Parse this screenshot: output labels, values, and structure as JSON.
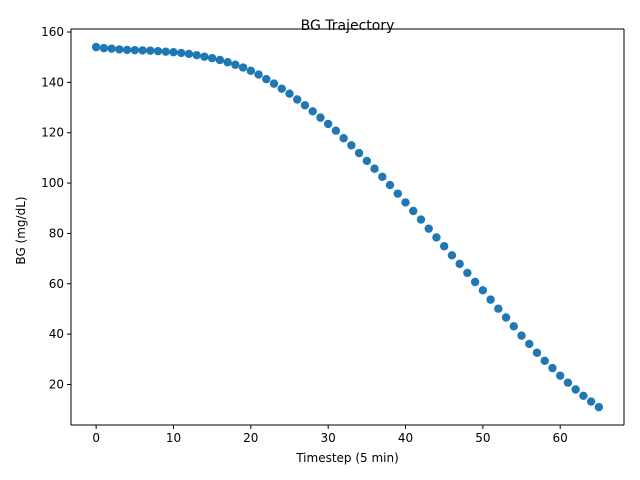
{
  "chart_data": {
    "type": "scatter",
    "title": "BG Trajectory",
    "xlabel": "Timestep (5 min)",
    "ylabel": "BG (mg/dL)",
    "xlim": [
      -3.25,
      68.25
    ],
    "ylim": [
      3.9,
      161.2
    ],
    "xticks": [
      0,
      10,
      20,
      30,
      40,
      50,
      60
    ],
    "yticks": [
      20,
      40,
      60,
      80,
      100,
      120,
      140,
      160
    ],
    "grid": false,
    "legend": "none",
    "marker_color": "#1f77b4",
    "series": [
      {
        "x": [
          0,
          1,
          2,
          3,
          4,
          5,
          6,
          7,
          8,
          9,
          10,
          11,
          12,
          13,
          14,
          15,
          16,
          17,
          18,
          19,
          20,
          21,
          22,
          23,
          24,
          25,
          26,
          27,
          28,
          29,
          30,
          31,
          32,
          33,
          34,
          35,
          36,
          37,
          38,
          39,
          40,
          41,
          42,
          43,
          44,
          45,
          46,
          47,
          48,
          49,
          50,
          51,
          52,
          53,
          54,
          55,
          56,
          57,
          58,
          59,
          60,
          61,
          62,
          63,
          64,
          65
        ],
        "y": [
          154.0,
          153.6,
          153.4,
          153.1,
          152.9,
          152.8,
          152.7,
          152.6,
          152.4,
          152.2,
          152.0,
          151.7,
          151.3,
          150.8,
          150.2,
          149.6,
          148.9,
          148.0,
          147.0,
          145.9,
          144.6,
          143.1,
          141.3,
          139.5,
          137.5,
          135.5,
          133.2,
          130.9,
          128.5,
          126.0,
          123.5,
          120.8,
          117.8,
          115.0,
          111.9,
          108.8,
          105.7,
          102.5,
          99.2,
          95.8,
          92.3,
          88.9,
          85.5,
          81.9,
          78.4,
          74.9,
          71.3,
          67.9,
          64.3,
          60.7,
          57.4,
          53.7,
          50.1,
          46.6,
          43.1,
          39.4,
          36.1,
          32.6,
          29.4,
          26.5,
          23.5,
          20.7,
          18.0,
          15.5,
          13.2,
          11.0
        ]
      }
    ]
  }
}
